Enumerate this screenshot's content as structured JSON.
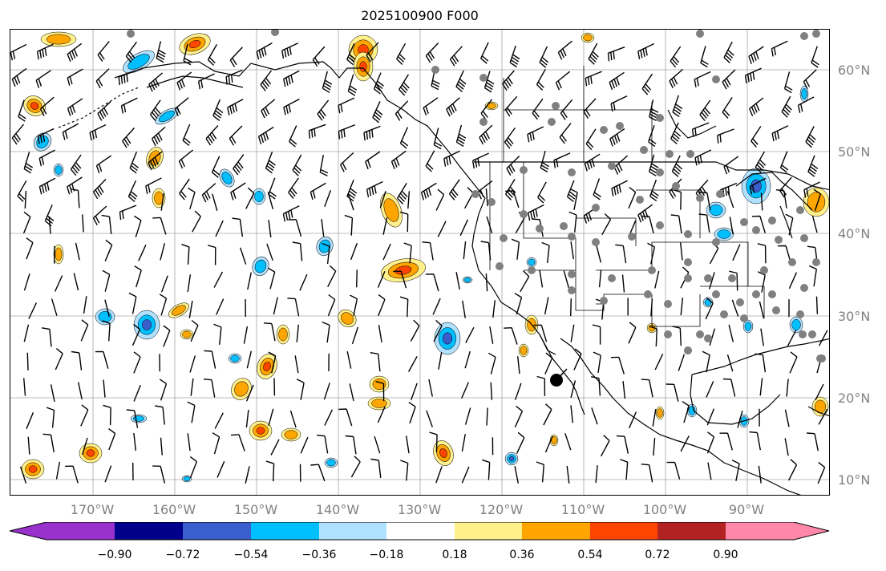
{
  "title": "2025100900 F000",
  "map": {
    "lat_labels": [
      "60°N",
      "50°N",
      "40°N",
      "30°N",
      "20°N",
      "10°N"
    ],
    "lon_labels": [
      "170°W",
      "160°W",
      "150°W",
      "140°W",
      "130°W",
      "120°W",
      "110°W",
      "100°W",
      "90°W"
    ],
    "gridline_color": "#808080",
    "coast_color": "#000000",
    "station_dot_color": "#808080"
  },
  "colorbar": {
    "tick_labels": [
      "−0.90",
      "−0.72",
      "−0.54",
      "−0.36",
      "−0.18",
      "0.18",
      "0.36",
      "0.54",
      "0.72",
      "0.90"
    ],
    "colors": [
      "#9932cc",
      "#00008b",
      "#3a5fcd",
      "#00bfff",
      "#b0e2ff",
      "#ffffff",
      "#fff08a",
      "#ffa500",
      "#ff4500",
      "#b22222",
      "#ff88aa"
    ]
  },
  "contour_fill_colors": {
    "neg1": "#b0e2ff",
    "neg2": "#00bfff",
    "neg3": "#3a5fcd",
    "pos1": "#fff08a",
    "pos2": "#ffa500",
    "pos3": "#ff4500"
  }
}
